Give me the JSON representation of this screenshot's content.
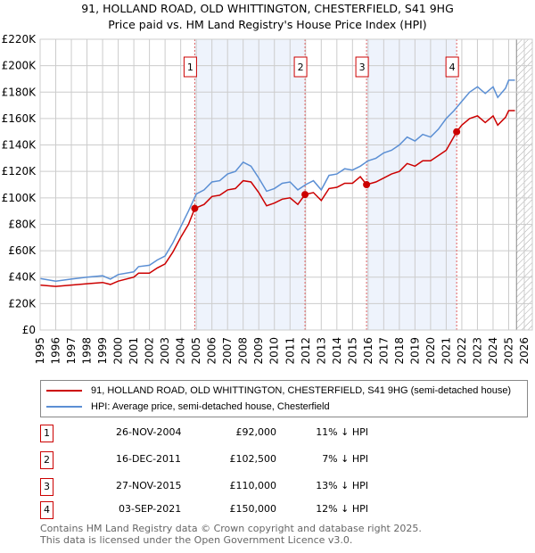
{
  "title_line1": "91, HOLLAND ROAD, OLD WHITTINGTON, CHESTERFIELD, S41 9HG",
  "title_line2": "Price paid vs. HM Land Registry's House Price Index (HPI)",
  "colors": {
    "property": "#cc0000",
    "hpi": "#5b8fd4",
    "shade": "#eef3fc",
    "marker_border": "#cc0000"
  },
  "chart_data": {
    "type": "line",
    "title": "Price paid vs. HM Land Registry's House Price Index (HPI)",
    "xlim": [
      1995,
      2026
    ],
    "ylim": [
      0,
      220000
    ],
    "yticks": [
      0,
      20000,
      40000,
      60000,
      80000,
      100000,
      120000,
      140000,
      160000,
      180000,
      200000,
      220000
    ],
    "ytick_labels": [
      "£0",
      "£20K",
      "£40K",
      "£60K",
      "£80K",
      "£100K",
      "£120K",
      "£140K",
      "£160K",
      "£180K",
      "£200K",
      "£220K"
    ],
    "xticks": [
      "1995",
      "1996",
      "1997",
      "1998",
      "1999",
      "2000",
      "2001",
      "2002",
      "2003",
      "2004",
      "2005",
      "2006",
      "2007",
      "2008",
      "2009",
      "2010",
      "2011",
      "2012",
      "2013",
      "2014",
      "2015",
      "2016",
      "2017",
      "2018",
      "2019",
      "2020",
      "2021",
      "2022",
      "2023",
      "2024",
      "2025",
      "2026"
    ],
    "grid": true,
    "forecast_hatch_from": 2025.5,
    "series": [
      {
        "name": "91, HOLLAND ROAD, OLD WHITTINGTON, CHESTERFIELD, S41 9HG (semi-detached house)",
        "x": [
          1995,
          1996,
          1997,
          1998,
          1999,
          1999.5,
          2000,
          2001,
          2001.3,
          2002,
          2002.5,
          2003,
          2003.5,
          2004,
          2004.5,
          2004.9,
          2005.5,
          2006,
          2006.5,
          2007,
          2007.5,
          2008,
          2008.5,
          2009,
          2009.5,
          2010,
          2010.5,
          2011,
          2011.5,
          2011.96,
          2012.5,
          2013,
          2013.5,
          2014,
          2014.5,
          2015,
          2015.5,
          2015.9,
          2016.5,
          2017,
          2017.5,
          2018,
          2018.5,
          2019,
          2019.5,
          2020,
          2020.5,
          2021,
          2021.67,
          2022,
          2022.5,
          2023,
          2023.5,
          2024,
          2024.3,
          2024.8,
          2025,
          2025.4
        ],
        "y": [
          34000,
          33000,
          34000,
          35000,
          36000,
          34500,
          37000,
          40000,
          43000,
          43000,
          47000,
          50000,
          59000,
          70000,
          80000,
          92000,
          95000,
          101000,
          102000,
          106000,
          107000,
          113000,
          112000,
          104000,
          94000,
          96000,
          99000,
          100000,
          95000,
          102500,
          104000,
          98000,
          107000,
          108000,
          111000,
          111000,
          116000,
          110000,
          112000,
          115000,
          118000,
          120000,
          126000,
          124000,
          128000,
          128000,
          132000,
          136000,
          150000,
          155000,
          160000,
          162000,
          157000,
          162000,
          155000,
          161000,
          166000,
          166000
        ]
      },
      {
        "name": "HPI: Average price, semi-detached house, Chesterfield",
        "x": [
          1995,
          1996,
          1997,
          1998,
          1999,
          1999.5,
          2000,
          2001,
          2001.3,
          2002,
          2002.5,
          2003,
          2003.5,
          2004,
          2004.5,
          2005,
          2005.5,
          2006,
          2006.5,
          2007,
          2007.5,
          2008,
          2008.5,
          2009,
          2009.5,
          2010,
          2010.5,
          2011,
          2011.5,
          2012,
          2012.5,
          2013,
          2013.5,
          2014,
          2014.5,
          2015,
          2015.5,
          2016,
          2016.5,
          2017,
          2017.5,
          2018,
          2018.5,
          2019,
          2019.5,
          2020,
          2020.5,
          2021,
          2021.5,
          2022,
          2022.5,
          2023,
          2023.5,
          2024,
          2024.3,
          2024.8,
          2025,
          2025.4
        ],
        "y": [
          39000,
          37000,
          38500,
          40000,
          41000,
          38500,
          42000,
          44000,
          48000,
          49000,
          53000,
          56000,
          66000,
          78000,
          90000,
          103000,
          106000,
          112000,
          113000,
          118000,
          120000,
          127000,
          124000,
          115000,
          105000,
          107000,
          111000,
          112000,
          106000,
          110000,
          113000,
          106000,
          117000,
          118000,
          122000,
          121000,
          124000,
          128000,
          130000,
          134000,
          136000,
          140000,
          146000,
          143000,
          148000,
          146000,
          152000,
          160000,
          166000,
          173000,
          180000,
          184000,
          179000,
          184000,
          176000,
          183000,
          189000,
          189000
        ]
      }
    ],
    "sales": [
      {
        "label": "1",
        "x": 2004.9,
        "y": 92000
      },
      {
        "label": "2",
        "x": 2011.96,
        "y": 102500
      },
      {
        "label": "3",
        "x": 2015.9,
        "y": 110000
      },
      {
        "label": "4",
        "x": 2021.67,
        "y": 150000
      }
    ]
  },
  "legend": {
    "property": "91, HOLLAND ROAD, OLD WHITTINGTON, CHESTERFIELD, S41 9HG (semi-detached house)",
    "hpi": "HPI: Average price, semi-detached house, Chesterfield"
  },
  "transactions": [
    {
      "num": "1",
      "date": "26-NOV-2004",
      "price": "£92,000",
      "hpi": "11% ↓ HPI"
    },
    {
      "num": "2",
      "date": "16-DEC-2011",
      "price": "£102,500",
      "hpi": "7% ↓ HPI"
    },
    {
      "num": "3",
      "date": "27-NOV-2015",
      "price": "£110,000",
      "hpi": "13% ↓ HPI"
    },
    {
      "num": "4",
      "date": "03-SEP-2021",
      "price": "£150,000",
      "hpi": "12% ↓ HPI"
    }
  ],
  "footer": {
    "line1": "Contains HM Land Registry data © Crown copyright and database right 2025.",
    "line2": "This data is licensed under the Open Government Licence v3.0."
  }
}
